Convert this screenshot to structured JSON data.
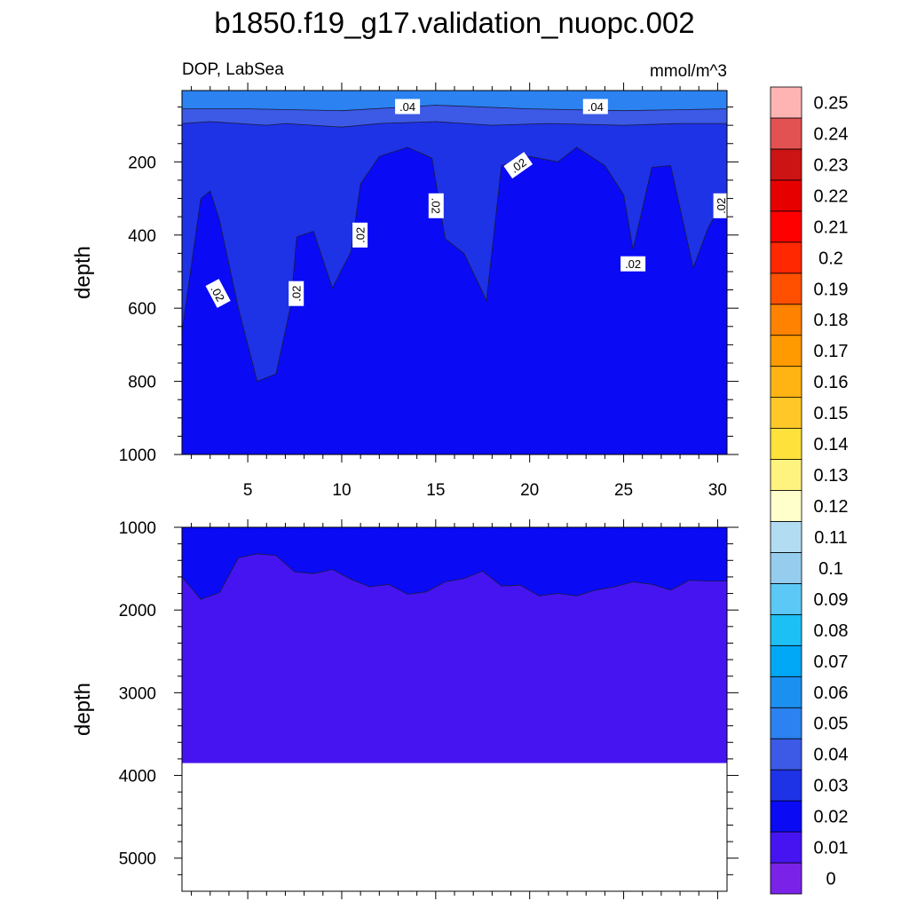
{
  "title": "b1850.f19_g17.validation_nuopc.002",
  "colors": {
    "upper_band": "#2B82F0",
    "band_03_04": "#3C5AE6",
    "band_02_03": "#1E32E6",
    "band_01_02": "#0A0AF5",
    "band_00_01": "#4614F0",
    "background": "#FFFFFF"
  },
  "chart_data": [
    {
      "type": "contour",
      "panel": "upper",
      "left_string": "DOP, LabSea",
      "right_string": "mmol/m^3",
      "xlabel": "",
      "ylabel": "depth",
      "xlim": [
        1.5,
        30.5
      ],
      "ylim": [
        1000,
        5
      ],
      "x_ticks": [
        5,
        10,
        15,
        20,
        25,
        30
      ],
      "x_tick_labels": [
        "5",
        "10",
        "15",
        "20",
        "25",
        "30"
      ],
      "y_ticks": [
        200,
        400,
        600,
        800,
        1000
      ],
      "y_tick_labels": [
        "200",
        "400",
        "600",
        "800",
        "1000"
      ],
      "contour_interval": 0.01,
      "contour_0.04_depth": [
        [
          1.5,
          55
        ],
        [
          5,
          55
        ],
        [
          10,
          60
        ],
        [
          15,
          45
        ],
        [
          20,
          55
        ],
        [
          25,
          60
        ],
        [
          30.5,
          55
        ]
      ],
      "contour_0.03_depth": [
        [
          1.5,
          95
        ],
        [
          3,
          90
        ],
        [
          6,
          100
        ],
        [
          7,
          95
        ],
        [
          10,
          105
        ],
        [
          12,
          95
        ],
        [
          15,
          90
        ],
        [
          18,
          100
        ],
        [
          21,
          95
        ],
        [
          25,
          100
        ],
        [
          28,
          95
        ],
        [
          30.5,
          95
        ]
      ],
      "contour_0.02_depth": [
        [
          1.5,
          665
        ],
        [
          2.5,
          300
        ],
        [
          3,
          280
        ],
        [
          3.5,
          360
        ],
        [
          4.5,
          600
        ],
        [
          5.5,
          800
        ],
        [
          6.5,
          780
        ],
        [
          7.3,
          590
        ],
        [
          7.6,
          405
        ],
        [
          8.5,
          390
        ],
        [
          9.5,
          545
        ],
        [
          10.5,
          445
        ],
        [
          11,
          260
        ],
        [
          12,
          185
        ],
        [
          13.5,
          160
        ],
        [
          14.8,
          190
        ],
        [
          15.5,
          410
        ],
        [
          16.5,
          450
        ],
        [
          17.3,
          535
        ],
        [
          17.7,
          580
        ],
        [
          18.5,
          210
        ],
        [
          20,
          185
        ],
        [
          21.5,
          200
        ],
        [
          22.5,
          160
        ],
        [
          24,
          210
        ],
        [
          25,
          290
        ],
        [
          25.5,
          440
        ],
        [
          26.5,
          215
        ],
        [
          27.5,
          210
        ],
        [
          28.7,
          490
        ],
        [
          29.5,
          380
        ],
        [
          30.5,
          290
        ]
      ],
      "contour_labels": [
        {
          "text": ".04",
          "x": 13.5,
          "depth": 50
        },
        {
          "text": ".04",
          "x": 23.5,
          "depth": 50
        },
        {
          "text": ".02",
          "x": 3.4,
          "depth": 560
        },
        {
          "text": ".02",
          "x": 7.6,
          "depth": 560
        },
        {
          "text": ".02",
          "x": 11.0,
          "depth": 400
        },
        {
          "text": ".02",
          "x": 15.0,
          "depth": 320
        },
        {
          "text": ".02",
          "x": 19.4,
          "depth": 210
        },
        {
          "text": ".02",
          "x": 25.5,
          "depth": 480
        },
        {
          "text": ".02",
          "x": 30.2,
          "depth": 320
        }
      ]
    },
    {
      "type": "contour",
      "panel": "lower",
      "xlabel": "",
      "ylabel": "depth",
      "xlim": [
        1.5,
        30.5
      ],
      "ylim": [
        5400,
        1000
      ],
      "y_ticks": [
        1000,
        2000,
        3000,
        4000,
        5000
      ],
      "y_tick_labels": [
        "1000",
        "2000",
        "3000",
        "4000",
        "5000"
      ],
      "x_ticks": [
        5,
        10,
        15,
        20,
        25,
        30
      ],
      "sea_floor_depth": 3850,
      "contour_0.01_depth": [
        [
          1.5,
          1600
        ],
        [
          2.5,
          1870
        ],
        [
          3.5,
          1790
        ],
        [
          4.5,
          1370
        ],
        [
          5.5,
          1320
        ],
        [
          6.5,
          1340
        ],
        [
          7.5,
          1540
        ],
        [
          8.5,
          1560
        ],
        [
          9.5,
          1510
        ],
        [
          10.5,
          1630
        ],
        [
          11.5,
          1720
        ],
        [
          12.5,
          1690
        ],
        [
          13.5,
          1810
        ],
        [
          14.5,
          1780
        ],
        [
          15.5,
          1660
        ],
        [
          16.5,
          1620
        ],
        [
          17.5,
          1530
        ],
        [
          18.5,
          1710
        ],
        [
          19.5,
          1700
        ],
        [
          20.5,
          1830
        ],
        [
          21.5,
          1800
        ],
        [
          22.5,
          1830
        ],
        [
          23.5,
          1760
        ],
        [
          24.5,
          1720
        ],
        [
          25.5,
          1660
        ],
        [
          26.5,
          1690
        ],
        [
          27.5,
          1760
        ],
        [
          28.5,
          1640
        ],
        [
          29.5,
          1650
        ],
        [
          30.5,
          1650
        ]
      ]
    },
    {
      "type": "colorbar",
      "levels": [
        "0",
        "0.01",
        "0.02",
        "0.03",
        "0.04",
        "0.05",
        "0.06",
        "0.07",
        "0.08",
        "0.09",
        "0.1",
        "0.11",
        "0.12",
        "0.13",
        "0.14",
        "0.15",
        "0.16",
        "0.17",
        "0.18",
        "0.19",
        "0.2",
        "0.21",
        "0.22",
        "0.23",
        "0.24",
        "0.25"
      ],
      "colors": [
        "#7B22E8",
        "#4614F0",
        "#0A0AF5",
        "#1E32E6",
        "#3C5AE6",
        "#2B82F0",
        "#1C90F0",
        "#00A8F5",
        "#1CC0F5",
        "#5CC8F5",
        "#96CDEE",
        "#B2DCF2",
        "#FFFFCC",
        "#FFF380",
        "#FFE13C",
        "#FFC828",
        "#FFB414",
        "#FF9B00",
        "#FF8200",
        "#FF5000",
        "#FF2800",
        "#FF0000",
        "#E60000",
        "#CD1414",
        "#E25252",
        "#FFB4B4"
      ]
    }
  ]
}
